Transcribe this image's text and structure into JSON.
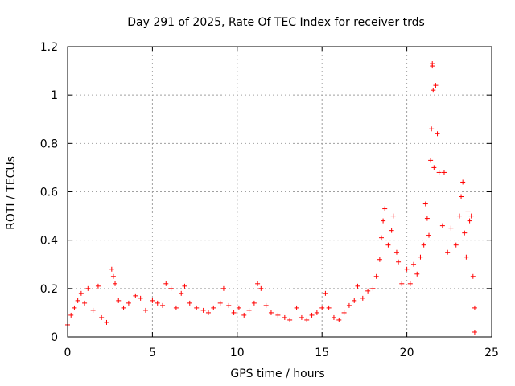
{
  "chart_data": {
    "type": "scatter",
    "title": "Day 291 of 2025, Rate Of TEC Index for receiver trds",
    "xlabel": "GPS time / hours",
    "ylabel": "ROTI / TECUs",
    "xlim": [
      0,
      25
    ],
    "ylim": [
      0,
      1.2
    ],
    "x_ticks": [
      0,
      5,
      10,
      15,
      20,
      25
    ],
    "y_ticks": [
      0,
      0.2,
      0.4,
      0.6,
      0.8,
      1,
      1.2
    ],
    "x_tick_labels": [
      "0",
      "5",
      "10",
      "15",
      "20",
      "25"
    ],
    "y_tick_labels": [
      "0",
      "0.2",
      "0.4",
      "0.6",
      "0.8",
      "1",
      "1.2"
    ],
    "grid": true,
    "marker": "+",
    "color": "#ff0000",
    "series": [
      {
        "name": "ROTI",
        "points": [
          [
            0.0,
            0.05
          ],
          [
            0.2,
            0.09
          ],
          [
            0.4,
            0.12
          ],
          [
            0.6,
            0.15
          ],
          [
            0.8,
            0.18
          ],
          [
            1.0,
            0.14
          ],
          [
            1.2,
            0.2
          ],
          [
            1.5,
            0.11
          ],
          [
            1.8,
            0.21
          ],
          [
            2.0,
            0.08
          ],
          [
            2.3,
            0.06
          ],
          [
            2.6,
            0.28
          ],
          [
            2.7,
            0.25
          ],
          [
            2.8,
            0.22
          ],
          [
            3.0,
            0.15
          ],
          [
            3.3,
            0.12
          ],
          [
            3.6,
            0.14
          ],
          [
            4.0,
            0.17
          ],
          [
            4.3,
            0.16
          ],
          [
            4.6,
            0.11
          ],
          [
            5.0,
            0.15
          ],
          [
            5.3,
            0.14
          ],
          [
            5.6,
            0.13
          ],
          [
            5.8,
            0.22
          ],
          [
            6.1,
            0.2
          ],
          [
            6.4,
            0.12
          ],
          [
            6.7,
            0.18
          ],
          [
            6.9,
            0.21
          ],
          [
            7.2,
            0.14
          ],
          [
            7.6,
            0.12
          ],
          [
            8.0,
            0.11
          ],
          [
            8.3,
            0.1
          ],
          [
            8.6,
            0.12
          ],
          [
            9.0,
            0.14
          ],
          [
            9.2,
            0.2
          ],
          [
            9.5,
            0.13
          ],
          [
            9.8,
            0.1
          ],
          [
            10.1,
            0.12
          ],
          [
            10.4,
            0.09
          ],
          [
            10.7,
            0.11
          ],
          [
            11.0,
            0.14
          ],
          [
            11.2,
            0.22
          ],
          [
            11.4,
            0.2
          ],
          [
            11.7,
            0.13
          ],
          [
            12.0,
            0.1
          ],
          [
            12.4,
            0.09
          ],
          [
            12.8,
            0.08
          ],
          [
            13.1,
            0.07
          ],
          [
            13.5,
            0.12
          ],
          [
            13.8,
            0.08
          ],
          [
            14.1,
            0.07
          ],
          [
            14.4,
            0.09
          ],
          [
            14.7,
            0.1
          ],
          [
            15.0,
            0.12
          ],
          [
            15.2,
            0.18
          ],
          [
            15.4,
            0.12
          ],
          [
            15.7,
            0.08
          ],
          [
            16.0,
            0.07
          ],
          [
            16.3,
            0.1
          ],
          [
            16.6,
            0.13
          ],
          [
            16.9,
            0.15
          ],
          [
            17.1,
            0.21
          ],
          [
            17.4,
            0.16
          ],
          [
            17.7,
            0.19
          ],
          [
            18.0,
            0.2
          ],
          [
            18.2,
            0.25
          ],
          [
            18.4,
            0.32
          ],
          [
            18.5,
            0.41
          ],
          [
            18.6,
            0.48
          ],
          [
            18.7,
            0.53
          ],
          [
            18.9,
            0.38
          ],
          [
            19.1,
            0.44
          ],
          [
            19.2,
            0.5
          ],
          [
            19.4,
            0.35
          ],
          [
            19.5,
            0.31
          ],
          [
            19.7,
            0.22
          ],
          [
            20.0,
            0.28
          ],
          [
            20.2,
            0.22
          ],
          [
            20.4,
            0.3
          ],
          [
            20.6,
            0.26
          ],
          [
            20.8,
            0.33
          ],
          [
            21.0,
            0.38
          ],
          [
            21.1,
            0.55
          ],
          [
            21.2,
            0.49
          ],
          [
            21.3,
            0.42
          ],
          [
            21.4,
            0.73
          ],
          [
            21.45,
            0.86
          ],
          [
            21.5,
            1.12
          ],
          [
            21.5,
            1.13
          ],
          [
            21.55,
            1.02
          ],
          [
            21.6,
            0.7
          ],
          [
            21.7,
            1.04
          ],
          [
            21.8,
            0.84
          ],
          [
            21.9,
            0.68
          ],
          [
            22.2,
            0.68
          ],
          [
            22.1,
            0.46
          ],
          [
            22.4,
            0.35
          ],
          [
            22.6,
            0.45
          ],
          [
            22.9,
            0.38
          ],
          [
            23.1,
            0.5
          ],
          [
            23.2,
            0.58
          ],
          [
            23.3,
            0.64
          ],
          [
            23.4,
            0.43
          ],
          [
            23.5,
            0.33
          ],
          [
            23.6,
            0.52
          ],
          [
            23.7,
            0.48
          ],
          [
            23.8,
            0.5
          ],
          [
            23.9,
            0.25
          ],
          [
            24.0,
            0.12
          ],
          [
            24.0,
            0.02
          ]
        ]
      }
    ]
  }
}
